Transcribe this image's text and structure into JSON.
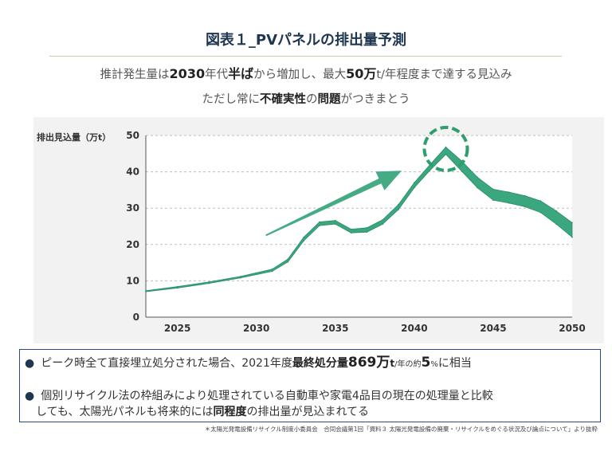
{
  "header": {
    "title": "図表１_PVパネルの排出量予測",
    "sub1_pre": "推計発生量は",
    "sub1_b1": "2030",
    "sub1_mid1": "年代",
    "sub1_b2": "半ば",
    "sub1_mid2": "から増加し、最大",
    "sub1_b3": "50",
    "sub1_b4": "万",
    "sub1_post": "t/年程度まで達する見込み",
    "sub2_pre": "ただし常に",
    "sub2_b1": "不確実性",
    "sub2_mid": "の",
    "sub2_b2": "問題",
    "sub2_post": "がつきまとう"
  },
  "chart_data": {
    "type": "area",
    "ylabel": "排出見込量（万t）",
    "xlim": [
      2023,
      2050
    ],
    "ylim": [
      0,
      50
    ],
    "yticks": [
      0,
      10,
      20,
      30,
      40,
      50
    ],
    "xticks": [
      2025,
      2030,
      2035,
      2040,
      2045,
      2050
    ],
    "grid": "horizontal-dashed",
    "series": [
      {
        "role": "upper",
        "x": [
          2023,
          2025,
          2027,
          2029,
          2031,
          2032,
          2033,
          2034,
          2035,
          2036,
          2037,
          2038,
          2039,
          2040,
          2041,
          2042,
          2043,
          2044,
          2045,
          2046,
          2047,
          2048,
          2049,
          2050
        ],
        "values": [
          7.3,
          8.4,
          9.7,
          11.2,
          13.2,
          16.0,
          22.0,
          26.2,
          26.6,
          24.2,
          24.6,
          26.8,
          31.0,
          37.0,
          42.0,
          46.8,
          43.0,
          38.5,
          35.2,
          34.4,
          33.4,
          32.0,
          29.2,
          26.0
        ]
      },
      {
        "role": "lower",
        "x": [
          2023,
          2025,
          2027,
          2029,
          2031,
          2032,
          2033,
          2034,
          2035,
          2036,
          2037,
          2038,
          2039,
          2040,
          2041,
          2042,
          2043,
          2044,
          2045,
          2046,
          2047,
          2048,
          2049,
          2050
        ],
        "values": [
          7.0,
          8.0,
          9.3,
          10.8,
          12.6,
          15.2,
          21.0,
          25.2,
          25.6,
          23.2,
          23.4,
          25.6,
          29.6,
          35.6,
          40.4,
          44.8,
          40.2,
          35.6,
          32.2,
          31.4,
          30.4,
          28.8,
          25.6,
          22.0
        ]
      }
    ],
    "colors": {
      "band": "#3aa77e",
      "arrow": "#3aa77e",
      "circle": "#2e9e6c"
    }
  },
  "bullets": {
    "b1_text1": "ピーク時全て直接埋立処分された場合、2021年度",
    "b1_bold1": "最終処分量",
    "b1_big1": "869万",
    "b1_big_t": "t",
    "b1_small1": "/年の",
    "b1_text2": "約",
    "b1_big2": "5",
    "b1_small2": "%",
    "b1_text3": "に相当",
    "b2_line1": "個別リサイクル法の枠組みにより処理されている自動車や家電4品目の現在の処理量と比較",
    "b2_line2_pre": "しても、太陽光パネルも将来的には",
    "b2_bold": "同程度",
    "b2_line2_post": "の排出量が見込まれてる"
  },
  "footnote": "＊太陽光発電設備リサイクル制度小委員会　合同会議第1回「資料３ 太陽光発電設備の廃棄・リサイクルをめぐる状況及び論点について」より抜粋"
}
